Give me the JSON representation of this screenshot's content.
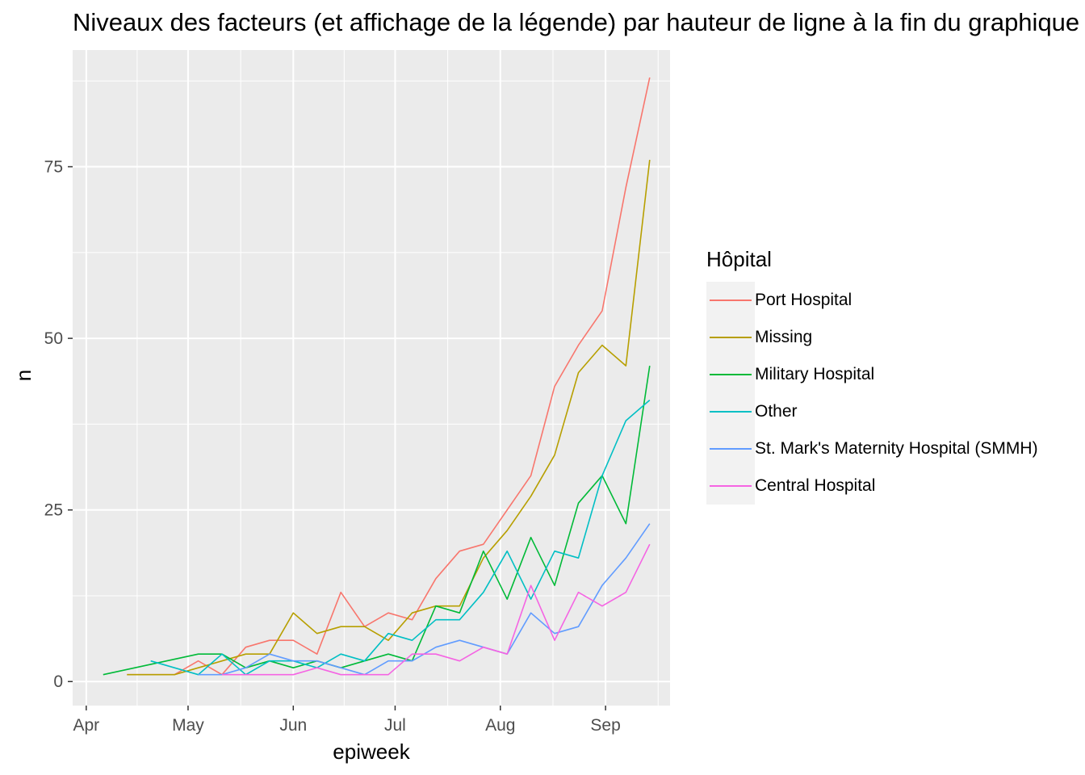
{
  "chart_data": {
    "type": "line",
    "title": "Niveaux des facteurs (et affichage de la légende) par hauteur de ligne à la fin du graphique",
    "xlabel": "epiweek",
    "ylabel": "n",
    "x_tick_labels": [
      "Apr",
      "May",
      "Jun",
      "Jul",
      "Aug",
      "Sep"
    ],
    "x_tick_dates": [
      "2014-04-01",
      "2014-05-01",
      "2014-06-01",
      "2014-07-01",
      "2014-08-01",
      "2014-09-01"
    ],
    "xlim": [
      "2014-03-28",
      "2014-09-20"
    ],
    "y_ticks": [
      0,
      25,
      50,
      75
    ],
    "ylim": [
      -3.5,
      92
    ],
    "grid": true,
    "legend_position": "right",
    "legend_title": "Hôpital",
    "series": [
      {
        "name": "Port Hospital",
        "color": "#F8766D",
        "points": [
          [
            "2014-04-13",
            1
          ],
          [
            "2014-04-27",
            1
          ],
          [
            "2014-05-04",
            3
          ],
          [
            "2014-05-11",
            1
          ],
          [
            "2014-05-18",
            5
          ],
          [
            "2014-05-25",
            6
          ],
          [
            "2014-06-01",
            6
          ],
          [
            "2014-06-08",
            4
          ],
          [
            "2014-06-15",
            13
          ],
          [
            "2014-06-22",
            8
          ],
          [
            "2014-06-29",
            10
          ],
          [
            "2014-07-06",
            9
          ],
          [
            "2014-07-13",
            15
          ],
          [
            "2014-07-20",
            19
          ],
          [
            "2014-07-27",
            20
          ],
          [
            "2014-08-03",
            25
          ],
          [
            "2014-08-10",
            30
          ],
          [
            "2014-08-17",
            43
          ],
          [
            "2014-08-24",
            49
          ],
          [
            "2014-08-31",
            54
          ],
          [
            "2014-09-07",
            72
          ],
          [
            "2014-09-14",
            88
          ]
        ]
      },
      {
        "name": "Missing",
        "color": "#B79F00",
        "points": [
          [
            "2014-04-13",
            1
          ],
          [
            "2014-04-27",
            1
          ],
          [
            "2014-05-04",
            2
          ],
          [
            "2014-05-11",
            3
          ],
          [
            "2014-05-18",
            4
          ],
          [
            "2014-05-25",
            4
          ],
          [
            "2014-06-01",
            10
          ],
          [
            "2014-06-08",
            7
          ],
          [
            "2014-06-15",
            8
          ],
          [
            "2014-06-22",
            8
          ],
          [
            "2014-06-29",
            6
          ],
          [
            "2014-07-06",
            10
          ],
          [
            "2014-07-13",
            11
          ],
          [
            "2014-07-20",
            11
          ],
          [
            "2014-07-27",
            18
          ],
          [
            "2014-08-03",
            22
          ],
          [
            "2014-08-10",
            27
          ],
          [
            "2014-08-17",
            33
          ],
          [
            "2014-08-24",
            45
          ],
          [
            "2014-08-31",
            49
          ],
          [
            "2014-09-07",
            46
          ],
          [
            "2014-09-14",
            76
          ]
        ]
      },
      {
        "name": "Military Hospital",
        "color": "#00BA38",
        "points": [
          [
            "2014-04-06",
            1
          ],
          [
            "2014-05-04",
            4
          ],
          [
            "2014-05-11",
            4
          ],
          [
            "2014-05-18",
            2
          ],
          [
            "2014-05-25",
            3
          ],
          [
            "2014-06-01",
            2
          ],
          [
            "2014-06-08",
            3
          ],
          [
            "2014-06-15",
            2
          ],
          [
            "2014-06-22",
            3
          ],
          [
            "2014-06-29",
            4
          ],
          [
            "2014-07-06",
            3
          ],
          [
            "2014-07-13",
            11
          ],
          [
            "2014-07-20",
            10
          ],
          [
            "2014-07-27",
            19
          ],
          [
            "2014-08-03",
            12
          ],
          [
            "2014-08-10",
            21
          ],
          [
            "2014-08-17",
            14
          ],
          [
            "2014-08-24",
            26
          ],
          [
            "2014-08-31",
            30
          ],
          [
            "2014-09-07",
            23
          ],
          [
            "2014-09-14",
            46
          ]
        ]
      },
      {
        "name": "Other",
        "color": "#00BFC4",
        "points": [
          [
            "2014-04-20",
            3
          ],
          [
            "2014-05-04",
            1
          ],
          [
            "2014-05-11",
            4
          ],
          [
            "2014-05-18",
            1
          ],
          [
            "2014-05-25",
            3
          ],
          [
            "2014-06-01",
            3
          ],
          [
            "2014-06-08",
            2
          ],
          [
            "2014-06-15",
            4
          ],
          [
            "2014-06-22",
            3
          ],
          [
            "2014-06-29",
            7
          ],
          [
            "2014-07-06",
            6
          ],
          [
            "2014-07-13",
            9
          ],
          [
            "2014-07-20",
            9
          ],
          [
            "2014-07-27",
            13
          ],
          [
            "2014-08-03",
            19
          ],
          [
            "2014-08-10",
            12
          ],
          [
            "2014-08-17",
            19
          ],
          [
            "2014-08-24",
            18
          ],
          [
            "2014-08-31",
            30
          ],
          [
            "2014-09-07",
            38
          ],
          [
            "2014-09-14",
            41
          ]
        ]
      },
      {
        "name": "St. Mark's Maternity Hospital (SMMH)",
        "color": "#619CFF",
        "points": [
          [
            "2014-05-04",
            1
          ],
          [
            "2014-05-11",
            1
          ],
          [
            "2014-05-18",
            2
          ],
          [
            "2014-05-25",
            4
          ],
          [
            "2014-06-01",
            3
          ],
          [
            "2014-06-08",
            3
          ],
          [
            "2014-06-15",
            2
          ],
          [
            "2014-06-22",
            1
          ],
          [
            "2014-06-29",
            3
          ],
          [
            "2014-07-06",
            3
          ],
          [
            "2014-07-13",
            5
          ],
          [
            "2014-07-20",
            6
          ],
          [
            "2014-07-27",
            5
          ],
          [
            "2014-08-03",
            4
          ],
          [
            "2014-08-10",
            10
          ],
          [
            "2014-08-17",
            7
          ],
          [
            "2014-08-24",
            8
          ],
          [
            "2014-08-31",
            14
          ],
          [
            "2014-09-07",
            18
          ],
          [
            "2014-09-14",
            23
          ]
        ]
      },
      {
        "name": "Central Hospital",
        "color": "#F564E3",
        "points": [
          [
            "2014-05-11",
            1
          ],
          [
            "2014-05-25",
            1
          ],
          [
            "2014-06-01",
            1
          ],
          [
            "2014-06-08",
            2
          ],
          [
            "2014-06-15",
            1
          ],
          [
            "2014-06-22",
            1
          ],
          [
            "2014-06-29",
            1
          ],
          [
            "2014-07-06",
            4
          ],
          [
            "2014-07-13",
            4
          ],
          [
            "2014-07-20",
            3
          ],
          [
            "2014-07-27",
            5
          ],
          [
            "2014-08-03",
            4
          ],
          [
            "2014-08-10",
            14
          ],
          [
            "2014-08-17",
            6
          ],
          [
            "2014-08-24",
            13
          ],
          [
            "2014-08-31",
            11
          ],
          [
            "2014-09-07",
            13
          ],
          [
            "2014-09-14",
            20
          ]
        ]
      }
    ]
  }
}
